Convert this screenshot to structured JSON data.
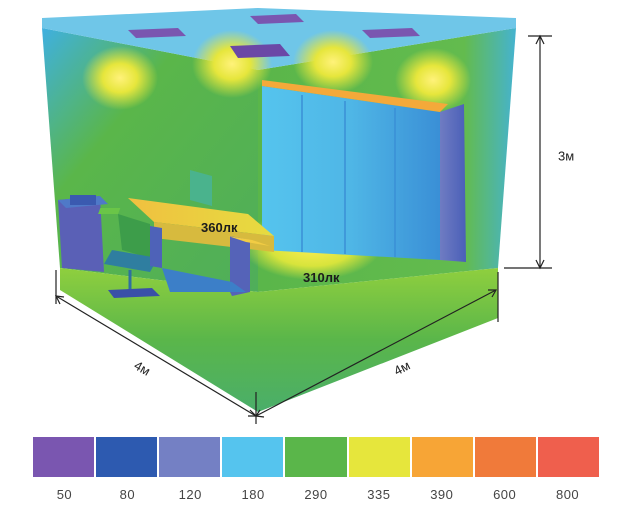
{
  "dimensions": {
    "height": "3м",
    "depth": "4м",
    "width": "4м"
  },
  "annotations": {
    "desk_lux": "360лк",
    "floor_lux": "310лк"
  },
  "legend": {
    "items": [
      {
        "value": "50",
        "color": "#7a56b0"
      },
      {
        "value": "80",
        "color": "#2d5ab0"
      },
      {
        "value": "120",
        "color": "#7480c4"
      },
      {
        "value": "180",
        "color": "#55c4ee"
      },
      {
        "value": "290",
        "color": "#5ab64a"
      },
      {
        "value": "335",
        "color": "#e6e63c"
      },
      {
        "value": "390",
        "color": "#f7a536"
      },
      {
        "value": "600",
        "color": "#f07a3a"
      },
      {
        "value": "800",
        "color": "#ef5f4d"
      }
    ]
  }
}
